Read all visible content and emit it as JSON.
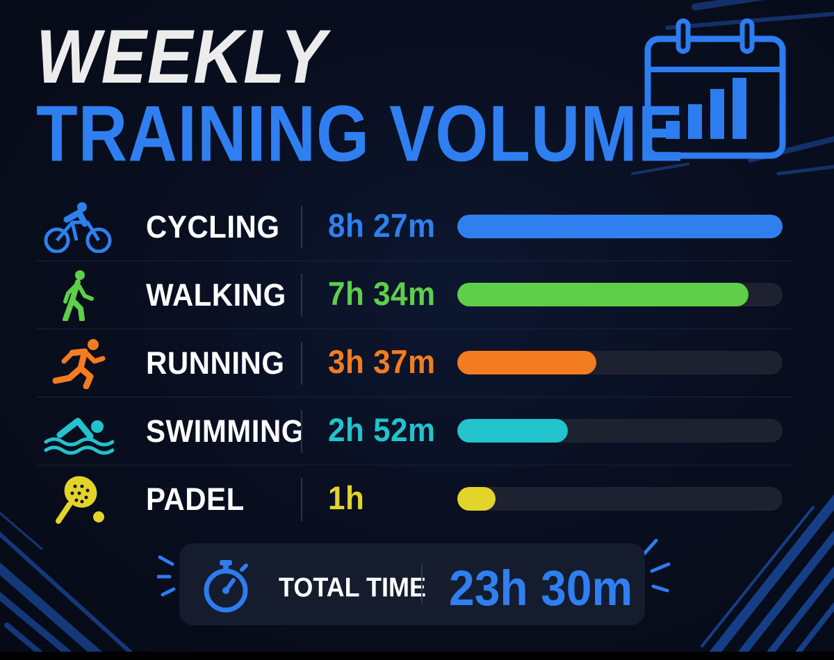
{
  "title": {
    "line1": "WEEKLY",
    "line2": "TRAINING VOLUME"
  },
  "colors": {
    "title_white": "#ececec",
    "accent_blue": "#2f7ff1",
    "track": "#1e2230"
  },
  "chart_data": {
    "type": "bar",
    "orientation": "horizontal",
    "categories": [
      "CYCLING",
      "WALKING",
      "RUNNING",
      "SWIMMING",
      "PADEL"
    ],
    "values": [
      507,
      454,
      217,
      172,
      60
    ],
    "value_units": "minutes",
    "data_labels": [
      "8h 27m",
      "7h 34m",
      "3h 37m",
      "2h 52m",
      "1h"
    ],
    "colors": [
      "#2f80ee",
      "#5fcf4a",
      "#f47c20",
      "#22c3cd",
      "#e3d42a"
    ],
    "icons": [
      "cycling-icon",
      "walking-icon",
      "running-icon",
      "swimming-icon",
      "padel-icon"
    ],
    "max_value": 507,
    "grid": false
  },
  "total": {
    "label": "TOTAL TIME",
    "value": "23h 30m",
    "icon": "stopwatch-icon"
  }
}
